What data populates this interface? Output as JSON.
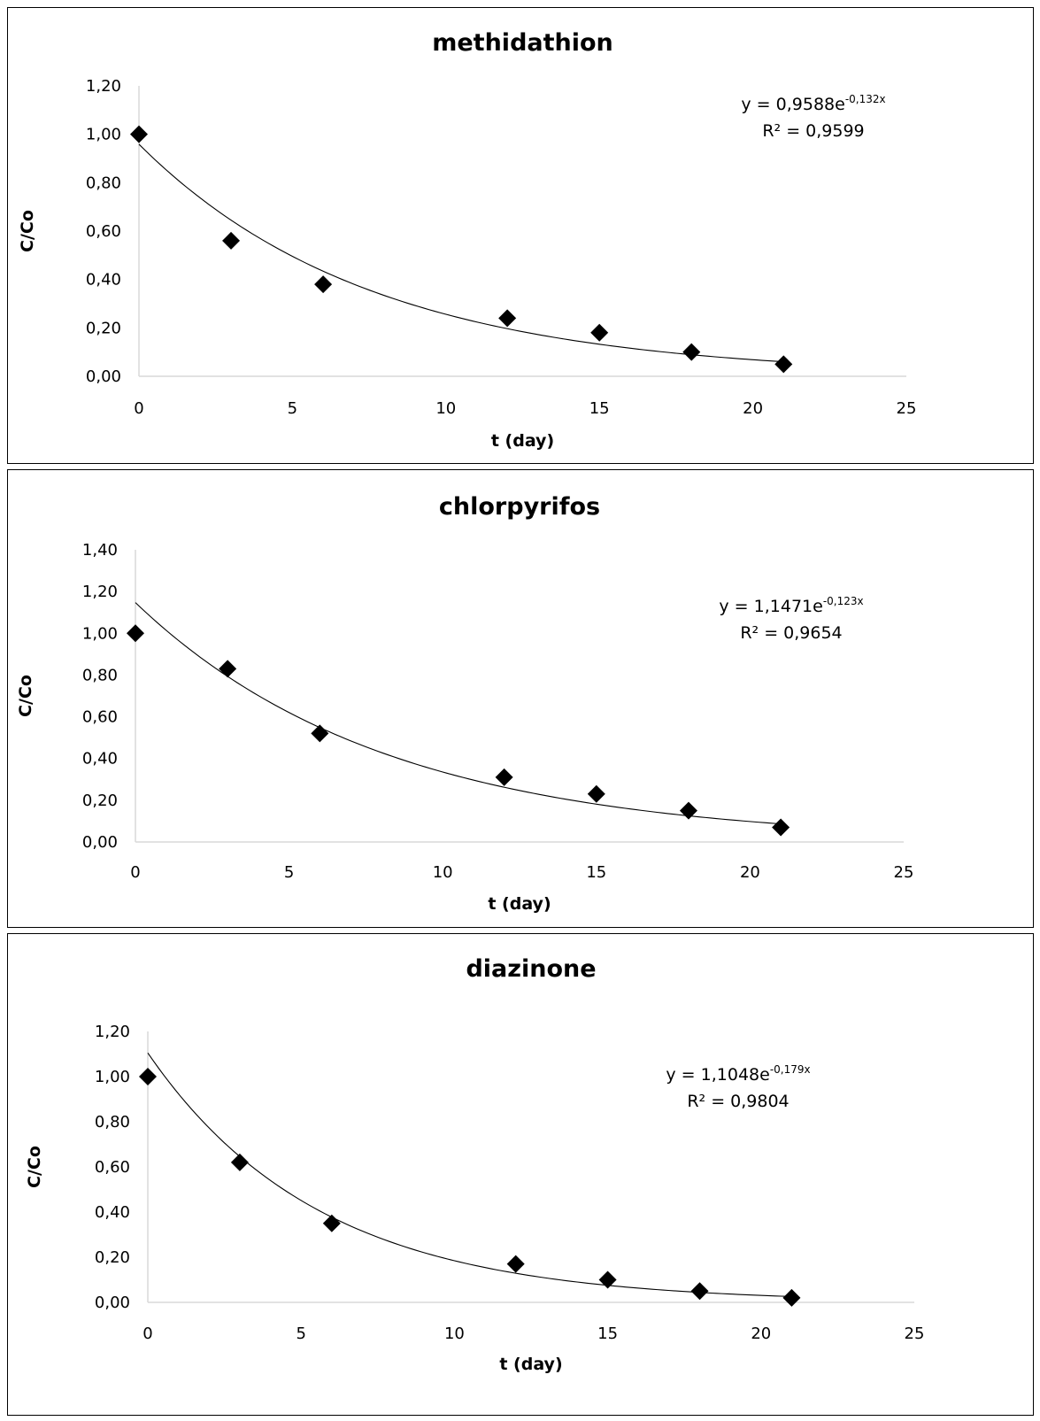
{
  "chart_data": [
    {
      "type": "scatter",
      "title": "methidathion",
      "xlabel": "t (day)",
      "ylabel": "C/Co",
      "xlim": [
        0,
        25
      ],
      "ylim": [
        0,
        1.2
      ],
      "x_ticks": [
        "0",
        "5",
        "10",
        "15",
        "20",
        "25"
      ],
      "y_ticks": [
        "0,00",
        "0,20",
        "0,40",
        "0,60",
        "0,80",
        "1,00",
        "1,20"
      ],
      "grid": false,
      "x": [
        0,
        3,
        6,
        12,
        15,
        18,
        21
      ],
      "y": [
        1.0,
        0.56,
        0.38,
        0.24,
        0.18,
        0.1,
        0.05
      ],
      "trendline": {
        "type": "exponential",
        "a": 0.9588,
        "b": -0.132,
        "equation": {
          "prefix": "y = 0,9588e",
          "exponent": "-0,132x"
        },
        "r2_label": "R² = 0,9599"
      }
    },
    {
      "type": "scatter",
      "title": "chlorpyrifos",
      "xlabel": "t (day)",
      "ylabel": "C/Co",
      "xlim": [
        0,
        25
      ],
      "ylim": [
        0,
        1.4
      ],
      "x_ticks": [
        "0",
        "5",
        "10",
        "15",
        "20",
        "25"
      ],
      "y_ticks": [
        "0,00",
        "0,20",
        "0,40",
        "0,60",
        "0,80",
        "1,00",
        "1,20",
        "1,40"
      ],
      "grid": false,
      "x": [
        0,
        3,
        6,
        12,
        15,
        18,
        21
      ],
      "y": [
        1.0,
        0.83,
        0.52,
        0.31,
        0.23,
        0.15,
        0.07
      ],
      "trendline": {
        "type": "exponential",
        "a": 1.1471,
        "b": -0.123,
        "equation": {
          "prefix": "y = 1,1471e",
          "exponent": "-0,123x"
        },
        "r2_label": "R² = 0,9654"
      }
    },
    {
      "type": "scatter",
      "title": "diazinone",
      "xlabel": "t (day)",
      "ylabel": "C/Co",
      "xlim": [
        0,
        25
      ],
      "ylim": [
        0,
        1.2
      ],
      "x_ticks": [
        "0",
        "5",
        "10",
        "15",
        "20",
        "25"
      ],
      "y_ticks": [
        "0,00",
        "0,20",
        "0,40",
        "0,60",
        "0,80",
        "1,00",
        "1,20"
      ],
      "grid": false,
      "x": [
        0,
        3,
        6,
        12,
        15,
        18,
        21
      ],
      "y": [
        1.0,
        0.62,
        0.35,
        0.17,
        0.1,
        0.05,
        0.02
      ],
      "trendline": {
        "type": "exponential",
        "a": 1.1048,
        "b": -0.179,
        "equation": {
          "prefix": "y = 1,1048e",
          "exponent": "-0,179x"
        },
        "r2_label": "R² = 0,9804"
      }
    }
  ]
}
